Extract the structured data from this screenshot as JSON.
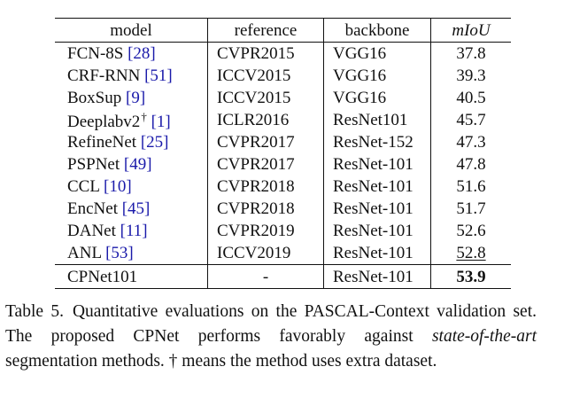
{
  "table": {
    "headers": {
      "model": "model",
      "reference": "reference",
      "backbone": "backbone",
      "miou": "mIoU"
    },
    "rows": [
      {
        "model": "FCN-8S",
        "cite": "[28]",
        "dagger": "",
        "reference": "CVPR2015",
        "backbone": "VGG16",
        "miou": "37.8",
        "style": "normal"
      },
      {
        "model": "CRF-RNN",
        "cite": "[51]",
        "dagger": "",
        "reference": "ICCV2015",
        "backbone": "VGG16",
        "miou": "39.3",
        "style": "normal"
      },
      {
        "model": "BoxSup",
        "cite": "[9]",
        "dagger": "",
        "reference": "ICCV2015",
        "backbone": "VGG16",
        "miou": "40.5",
        "style": "normal"
      },
      {
        "model": "Deeplabv2",
        "cite": "[1]",
        "dagger": "†",
        "reference": "ICLR2016",
        "backbone": "ResNet101",
        "miou": "45.7",
        "style": "normal"
      },
      {
        "model": "RefineNet",
        "cite": "[25]",
        "dagger": "",
        "reference": "CVPR2017",
        "backbone": "ResNet-152",
        "miou": "47.3",
        "style": "normal"
      },
      {
        "model": "PSPNet",
        "cite": "[49]",
        "dagger": "",
        "reference": "CVPR2017",
        "backbone": "ResNet-101",
        "miou": "47.8",
        "style": "normal"
      },
      {
        "model": "CCL",
        "cite": "[10]",
        "dagger": "",
        "reference": "CVPR2018",
        "backbone": "ResNet-101",
        "miou": "51.6",
        "style": "normal"
      },
      {
        "model": "EncNet",
        "cite": "[45]",
        "dagger": "",
        "reference": "CVPR2018",
        "backbone": "ResNet-101",
        "miou": "51.7",
        "style": "normal"
      },
      {
        "model": "DANet",
        "cite": "[11]",
        "dagger": "",
        "reference": "CVPR2019",
        "backbone": "ResNet-101",
        "miou": "52.6",
        "style": "normal"
      },
      {
        "model": "ANL",
        "cite": "[53]",
        "dagger": "",
        "reference": "ICCV2019",
        "backbone": "ResNet-101",
        "miou": "52.8",
        "style": "underline"
      },
      {
        "model": "CPNet101",
        "cite": "",
        "dagger": "",
        "reference": "-",
        "backbone": "ResNet-101",
        "miou": "53.9",
        "style": "bold"
      }
    ]
  },
  "caption": {
    "label": "Table 5.",
    "text_1": "Quantitative evaluations on the PASCAL-Context validation set. The proposed CPNet performs favorably against ",
    "italic": "state-of-the-art",
    "text_2": " segmentation methods. † means the method uses extra dataset."
  },
  "colors": {
    "citation_link": "#1a1aaa",
    "text": "#111111"
  }
}
